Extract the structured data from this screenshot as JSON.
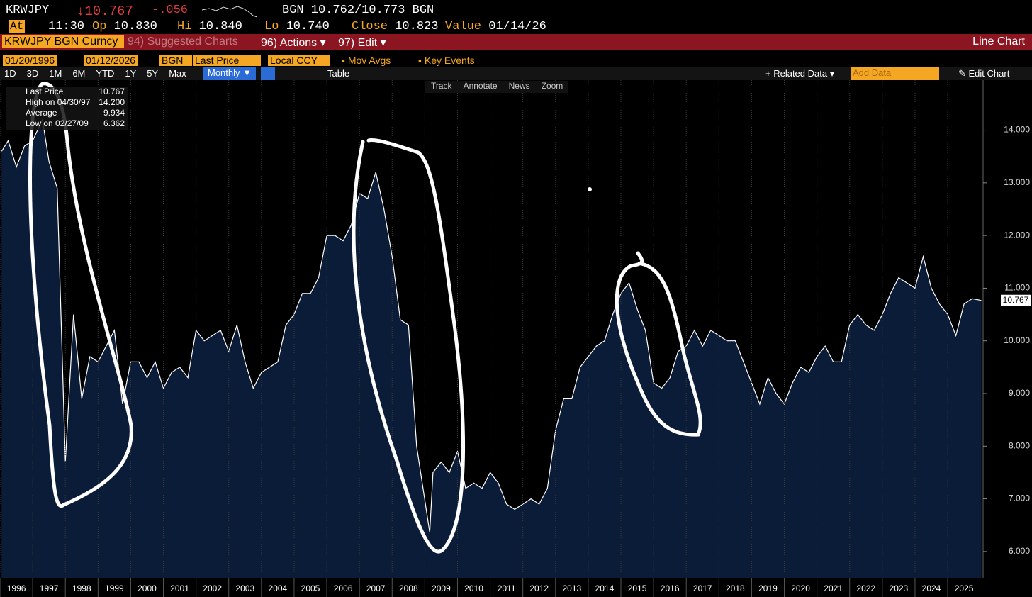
{
  "header": {
    "ticker": "KRWJPY",
    "price": "↓10.767",
    "change": "-.056",
    "quote": "BGN 10.762/10.773 BGN",
    "time_label": "At",
    "time": "11:30",
    "fields": [
      {
        "label": "Op",
        "value": "10.830"
      },
      {
        "label": "Hi",
        "value": "10.840"
      },
      {
        "label": "Lo",
        "value": "10.740"
      },
      {
        "label": "Close",
        "value": "10.823"
      },
      {
        "label": "Value",
        "value": "01/14/26"
      }
    ]
  },
  "menu": {
    "security": "KRWJPY BGN Curncy",
    "items": [
      "94) Suggested Charts",
      "96) Actions ▾",
      "97) Edit ▾"
    ],
    "chart_type": "Line Chart"
  },
  "controls": {
    "start_date": "01/20/1996",
    "end_date": "01/12/2026",
    "source": "BGN",
    "field": "Last Price",
    "currency": "Local CCY",
    "options": [
      "Mov Avgs",
      "Key Events"
    ]
  },
  "toolbar": {
    "periods": [
      "1D",
      "3D",
      "1M",
      "6M",
      "YTD",
      "1Y",
      "5Y",
      "Max"
    ],
    "frequency": "Monthly ▼",
    "table": "Table",
    "related": "+ Related Data ▾",
    "add_data": "Add Data",
    "edit": "Edit Chart"
  },
  "chart_tools": [
    "Track",
    "Annotate",
    "News",
    "Zoom"
  ],
  "legend": [
    {
      "label": "Last Price",
      "value": "10.767"
    },
    {
      "label": "High on 04/30/97",
      "value": "14.200"
    },
    {
      "label": "Average",
      "value": "9.934"
    },
    {
      "label": "Low on 02/27/09",
      "value": "6.362"
    }
  ],
  "chart_data": {
    "type": "area",
    "color": "#0b1c38",
    "line_color": "#ffffff",
    "grid": true,
    "x": [
      1996.05,
      1996.25,
      1996.5,
      1996.75,
      1997,
      1997.3,
      1997.5,
      1997.75,
      1998,
      1998.25,
      1998.5,
      1998.75,
      1999,
      1999.25,
      1999.5,
      1999.75,
      2000,
      2000.25,
      2000.5,
      2000.75,
      2001,
      2001.25,
      2001.5,
      2001.75,
      2002,
      2002.25,
      2002.5,
      2002.75,
      2003,
      2003.25,
      2003.5,
      2003.75,
      2004,
      2004.25,
      2004.5,
      2004.75,
      2005,
      2005.25,
      2005.5,
      2005.75,
      2006,
      2006.25,
      2006.5,
      2006.75,
      2007,
      2007.25,
      2007.5,
      2007.75,
      2008,
      2008.25,
      2008.5,
      2008.75,
      2009.15,
      2009.25,
      2009.5,
      2009.75,
      2010,
      2010.25,
      2010.5,
      2010.75,
      2011,
      2011.25,
      2011.5,
      2011.75,
      2012,
      2012.25,
      2012.5,
      2012.75,
      2013,
      2013.25,
      2013.5,
      2013.75,
      2014,
      2014.25,
      2014.5,
      2014.75,
      2015,
      2015.25,
      2015.5,
      2015.75,
      2016,
      2016.25,
      2016.5,
      2016.75,
      2017,
      2017.25,
      2017.5,
      2017.75,
      2018,
      2018.25,
      2018.5,
      2018.75,
      2019,
      2019.25,
      2019.5,
      2019.75,
      2020,
      2020.25,
      2020.5,
      2020.75,
      2021,
      2021.25,
      2021.5,
      2021.75,
      2022,
      2022.25,
      2022.5,
      2022.75,
      2023,
      2023.25,
      2023.5,
      2023.75,
      2024,
      2024.25,
      2024.5,
      2024.75,
      2025,
      2025.25,
      2025.5,
      2025.75,
      2026.03
    ],
    "values": [
      13.6,
      13.8,
      13.3,
      13.7,
      13.8,
      14.2,
      13.4,
      12.9,
      7.7,
      10.5,
      8.9,
      9.7,
      9.6,
      9.9,
      10.2,
      8.8,
      9.6,
      9.6,
      9.3,
      9.6,
      9.1,
      9.4,
      9.5,
      9.3,
      10.2,
      10.0,
      10.1,
      10.2,
      9.8,
      10.3,
      9.6,
      9.1,
      9.4,
      9.5,
      9.6,
      10.3,
      10.5,
      10.9,
      10.9,
      11.2,
      12.0,
      12.0,
      11.9,
      12.2,
      12.8,
      12.7,
      13.2,
      12.5,
      11.6,
      10.4,
      10.3,
      8.0,
      6.362,
      7.5,
      7.7,
      7.5,
      7.9,
      7.2,
      7.3,
      7.2,
      7.5,
      7.3,
      6.9,
      6.8,
      6.9,
      7.0,
      6.9,
      7.2,
      8.3,
      8.9,
      8.9,
      9.5,
      9.7,
      9.9,
      10.0,
      10.5,
      10.9,
      11.1,
      10.6,
      10.2,
      9.2,
      9.1,
      9.3,
      9.8,
      9.9,
      10.2,
      9.9,
      10.2,
      10.1,
      10.0,
      10.0,
      9.6,
      9.2,
      8.8,
      9.3,
      9.0,
      8.8,
      9.2,
      9.5,
      9.4,
      9.7,
      9.9,
      9.6,
      9.6,
      10.3,
      10.5,
      10.3,
      10.2,
      10.5,
      10.9,
      11.2,
      11.1,
      11.0,
      11.6,
      11.0,
      10.7,
      10.5,
      10.1,
      10.7,
      10.8,
      10.767
    ],
    "xlim": [
      1996,
      2026.04
    ],
    "xticks": [
      1996,
      1997,
      1998,
      1999,
      2000,
      2001,
      2002,
      2003,
      2004,
      2005,
      2006,
      2007,
      2008,
      2009,
      2010,
      2011,
      2012,
      2013,
      2014,
      2015,
      2016,
      2017,
      2018,
      2019,
      2020,
      2021,
      2022,
      2023,
      2024,
      2025
    ],
    "ylim": [
      5.5,
      14.95
    ],
    "yticks": [
      {
        "value": 6,
        "label": "6.000"
      },
      {
        "value": 7,
        "label": "7.000"
      },
      {
        "value": 8,
        "label": "8.000"
      },
      {
        "value": 9,
        "label": "9.000"
      },
      {
        "value": 10,
        "label": "10.000"
      },
      {
        "value": 11,
        "label": "11.000"
      },
      {
        "value": 12,
        "label": "12.000"
      },
      {
        "value": 13,
        "label": "13.000"
      },
      {
        "value": 14,
        "label": "14.000"
      }
    ]
  }
}
